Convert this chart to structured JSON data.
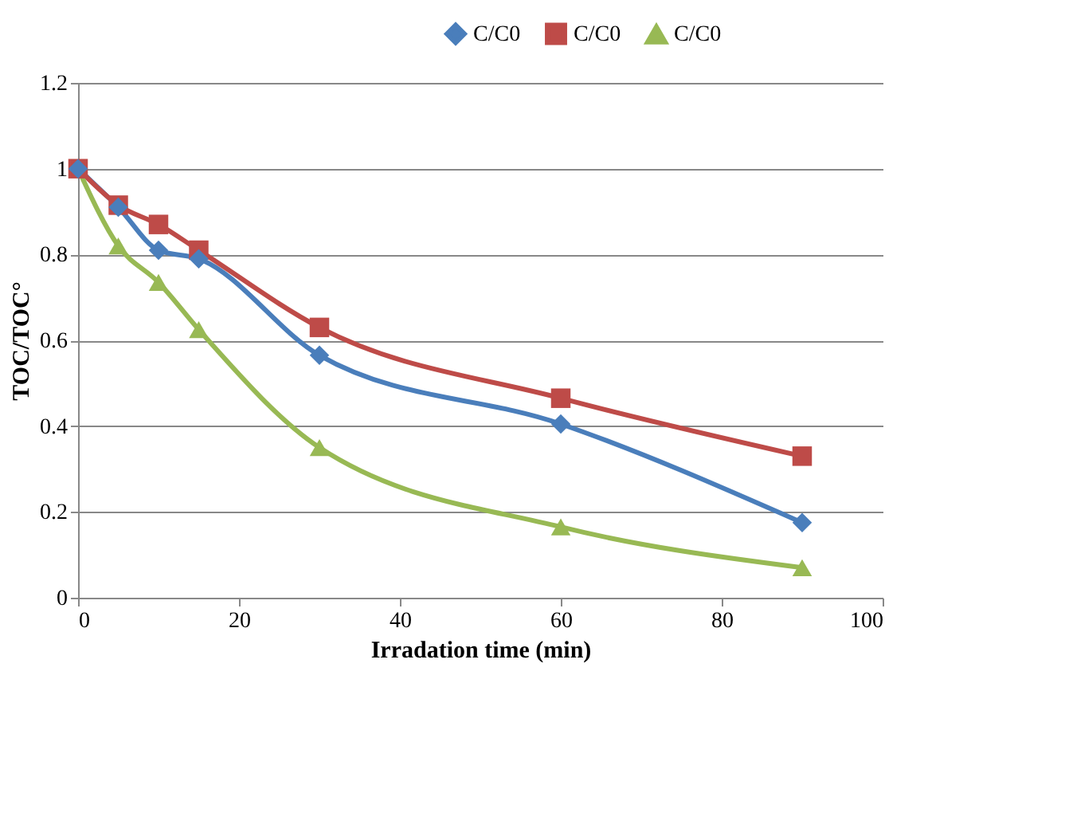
{
  "chart_data": {
    "type": "line",
    "xlabel": "Irradation time (min)",
    "ylabel": "TOC/TOC°",
    "x": [
      0,
      5,
      10,
      15,
      30,
      60,
      90
    ],
    "series": [
      {
        "name": "C/C0",
        "color": "#4a7ebb",
        "marker": "diamond",
        "values": [
          1,
          0.91,
          0.81,
          0.79,
          0.565,
          0.405,
          0.175
        ]
      },
      {
        "name": "C/C0",
        "color": "#be4b48",
        "marker": "square",
        "values": [
          1,
          0.915,
          0.87,
          0.81,
          0.63,
          0.465,
          0.33
        ]
      },
      {
        "name": "C/C0",
        "color": "#98b954",
        "marker": "triangle",
        "values": [
          1,
          0.82,
          0.735,
          0.625,
          0.35,
          0.165,
          0.07
        ]
      }
    ],
    "xlim": [
      0,
      100
    ],
    "xticks": [
      0,
      20,
      40,
      60,
      80,
      100
    ],
    "ylim": [
      0,
      1.2
    ],
    "yticks": [
      0,
      0.2,
      0.4,
      0.6,
      0.8,
      1,
      1.2
    ],
    "grid": "y",
    "legend": "top right",
    "line_style": "solid"
  }
}
